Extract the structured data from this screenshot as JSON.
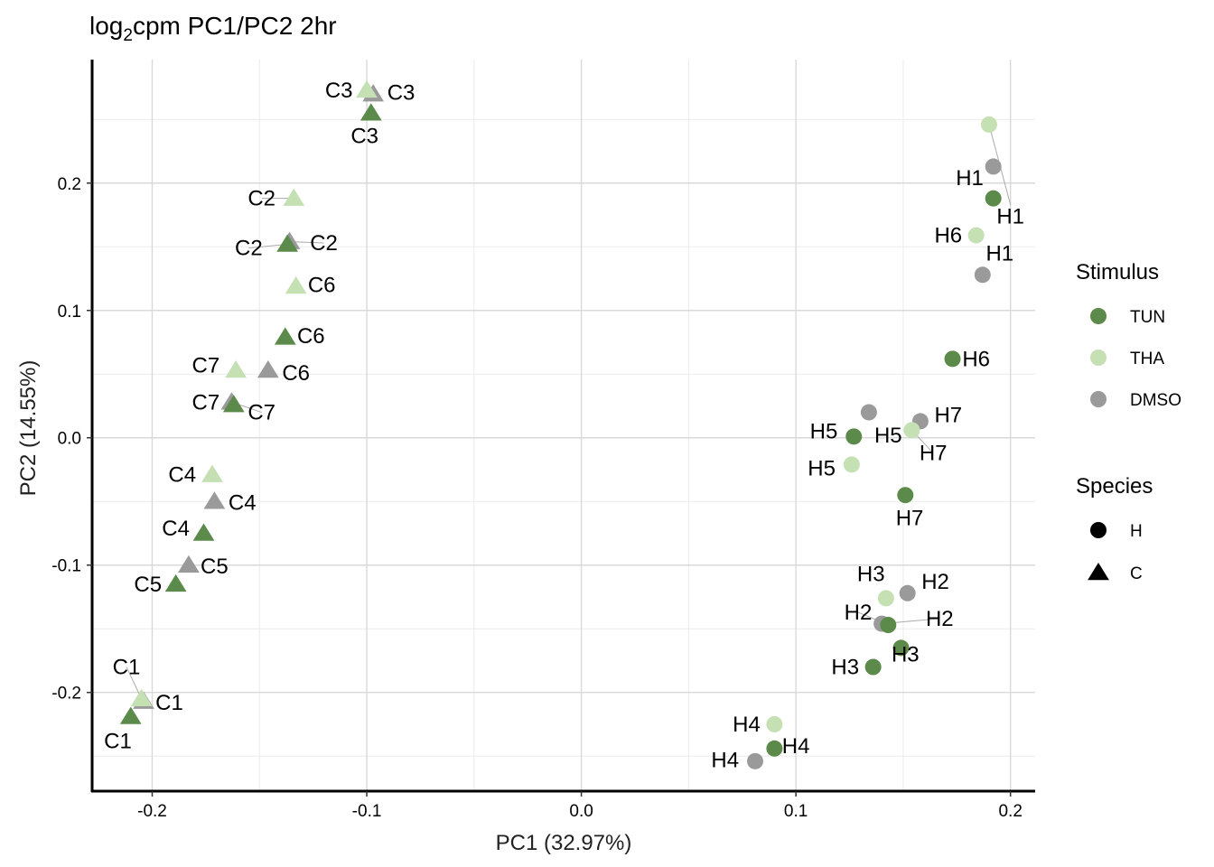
{
  "chart_data": {
    "type": "scatter",
    "title": {
      "prefix": "log",
      "sub": "2",
      "suffix": "cpm PC1/PC2 2hr"
    },
    "xlabel": "PC1 (32.97%)",
    "ylabel": "PC2 (14.55%)",
    "xlim": [
      -0.228,
      0.2115
    ],
    "ylim": [
      -0.2775,
      0.297
    ],
    "xticks": [
      {
        "v": -0.2,
        "label": "-0.2"
      },
      {
        "v": -0.1,
        "label": "-0.1"
      },
      {
        "v": 0.0,
        "label": "0.0"
      },
      {
        "v": 0.1,
        "label": "0.1"
      },
      {
        "v": 0.2,
        "label": "0.2"
      }
    ],
    "yticks": [
      {
        "v": -0.2,
        "label": "-0.2"
      },
      {
        "v": -0.1,
        "label": "-0.1"
      },
      {
        "v": 0.0,
        "label": "0.0"
      },
      {
        "v": 0.1,
        "label": "0.1"
      },
      {
        "v": 0.2,
        "label": "0.2"
      }
    ],
    "grid": true,
    "legend_position": "right",
    "colors": {
      "TUN": "#5b8a4a",
      "THA": "#c5e0b3",
      "DMSO": "#9a9a9a"
    },
    "legend": {
      "stimulus_title": "Stimulus",
      "stimulus": [
        "TUN",
        "THA",
        "DMSO"
      ],
      "species_title": "Species",
      "species": [
        {
          "name": "H",
          "shape": "circle"
        },
        {
          "name": "C",
          "shape": "triangle"
        }
      ]
    },
    "points": [
      {
        "label": "C3",
        "x": -0.1,
        "y": 0.273,
        "stimulus": "THA",
        "species": "C",
        "lx": -0.113,
        "ly": 0.273
      },
      {
        "label": "C3",
        "x": -0.097,
        "y": 0.27,
        "stimulus": "DMSO",
        "species": "C",
        "lx": -0.084,
        "ly": 0.271
      },
      {
        "label": "C3",
        "x": -0.098,
        "y": 0.255,
        "stimulus": "TUN",
        "species": "C",
        "lx": -0.101,
        "ly": 0.237
      },
      {
        "label": "C2",
        "x": -0.134,
        "y": 0.188,
        "stimulus": "THA",
        "species": "C",
        "lx": -0.149,
        "ly": 0.188
      },
      {
        "label": "C2",
        "x": -0.137,
        "y": 0.152,
        "stimulus": "TUN",
        "species": "C",
        "lx": -0.155,
        "ly": 0.149
      },
      {
        "label": "C2",
        "x": -0.136,
        "y": 0.154,
        "stimulus": "DMSO",
        "species": "C",
        "lx": -0.12,
        "ly": 0.153
      },
      {
        "label": "C6",
        "x": -0.133,
        "y": 0.119,
        "stimulus": "THA",
        "species": "C",
        "lx": -0.121,
        "ly": 0.12
      },
      {
        "label": "C6",
        "x": -0.138,
        "y": 0.079,
        "stimulus": "TUN",
        "species": "C",
        "lx": -0.126,
        "ly": 0.08
      },
      {
        "label": "C7",
        "x": -0.161,
        "y": 0.053,
        "stimulus": "THA",
        "species": "C",
        "lx": -0.175,
        "ly": 0.057
      },
      {
        "label": "C6",
        "x": -0.146,
        "y": 0.053,
        "stimulus": "DMSO",
        "species": "C",
        "lx": -0.133,
        "ly": 0.051
      },
      {
        "label": "C7",
        "x": -0.162,
        "y": 0.026,
        "stimulus": "TUN",
        "species": "C",
        "lx": -0.175,
        "ly": 0.028
      },
      {
        "label": "C7",
        "x": -0.163,
        "y": 0.028,
        "stimulus": "DMSO",
        "species": "C",
        "lx": -0.149,
        "ly": 0.02
      },
      {
        "label": "C4",
        "x": -0.172,
        "y": -0.029,
        "stimulus": "THA",
        "species": "C",
        "lx": -0.186,
        "ly": -0.029
      },
      {
        "label": "C4",
        "x": -0.171,
        "y": -0.05,
        "stimulus": "DMSO",
        "species": "C",
        "lx": -0.158,
        "ly": -0.051
      },
      {
        "label": "C4",
        "x": -0.176,
        "y": -0.075,
        "stimulus": "TUN",
        "species": "C",
        "lx": -0.189,
        "ly": -0.071
      },
      {
        "label": "C5",
        "x": -0.183,
        "y": -0.1,
        "stimulus": "DMSO",
        "species": "C",
        "lx": -0.171,
        "ly": -0.101
      },
      {
        "label": "C5",
        "x": -0.189,
        "y": -0.115,
        "stimulus": "TUN",
        "species": "C",
        "lx": -0.202,
        "ly": -0.115
      },
      {
        "label": "C1",
        "x": -0.205,
        "y": -0.205,
        "stimulus": "THA",
        "species": "C",
        "lx": -0.212,
        "ly": -0.18
      },
      {
        "label": "C1",
        "x": -0.204,
        "y": -0.207,
        "stimulus": "DMSO",
        "species": "C",
        "lx": -0.192,
        "ly": -0.208
      },
      {
        "label": "C1",
        "x": -0.21,
        "y": -0.219,
        "stimulus": "TUN",
        "species": "C",
        "lx": -0.216,
        "ly": -0.238
      },
      {
        "label": "",
        "x": 0.19,
        "y": 0.246,
        "stimulus": "THA",
        "species": "H"
      },
      {
        "label": "H1",
        "x": 0.192,
        "y": 0.213,
        "stimulus": "DMSO",
        "species": "H",
        "lx": 0.181,
        "ly": 0.204
      },
      {
        "label": "H1",
        "x": 0.192,
        "y": 0.188,
        "stimulus": "TUN",
        "species": "H",
        "lx": 0.2,
        "ly": 0.174
      },
      {
        "label": "H6",
        "x": 0.184,
        "y": 0.159,
        "stimulus": "THA",
        "species": "H",
        "lx": 0.171,
        "ly": 0.159
      },
      {
        "label": "H1",
        "x": 0.187,
        "y": 0.128,
        "stimulus": "DMSO",
        "species": "H",
        "lx": 0.195,
        "ly": 0.145
      },
      {
        "label": "H6",
        "x": 0.173,
        "y": 0.062,
        "stimulus": "TUN",
        "species": "H",
        "lx": 0.184,
        "ly": 0.062
      },
      {
        "label": "H7",
        "x": 0.158,
        "y": 0.013,
        "stimulus": "DMSO",
        "species": "H",
        "lx": 0.171,
        "ly": 0.018
      },
      {
        "label": "H5",
        "x": 0.134,
        "y": 0.02,
        "stimulus": "DMSO",
        "species": "H",
        "lx": 0.143,
        "ly": 0.002
      },
      {
        "label": "H7",
        "x": 0.154,
        "y": 0.006,
        "stimulus": "THA",
        "species": "H",
        "lx": 0.164,
        "ly": -0.012
      },
      {
        "label": "H5",
        "x": 0.127,
        "y": 0.001,
        "stimulus": "TUN",
        "species": "H",
        "lx": 0.113,
        "ly": 0.005
      },
      {
        "label": "H5",
        "x": 0.126,
        "y": -0.021,
        "stimulus": "THA",
        "species": "H",
        "lx": 0.112,
        "ly": -0.024
      },
      {
        "label": "H7",
        "x": 0.151,
        "y": -0.045,
        "stimulus": "TUN",
        "species": "H",
        "lx": 0.153,
        "ly": -0.063
      },
      {
        "label": "H3",
        "x": 0.142,
        "y": -0.126,
        "stimulus": "THA",
        "species": "H",
        "lx": 0.135,
        "ly": -0.107
      },
      {
        "label": "H2",
        "x": 0.152,
        "y": -0.122,
        "stimulus": "DMSO",
        "species": "H",
        "lx": 0.165,
        "ly": -0.113
      },
      {
        "label": "H2",
        "x": 0.143,
        "y": -0.147,
        "stimulus": "TUN",
        "species": "H",
        "lx": 0.129,
        "ly": -0.137
      },
      {
        "label": "H2",
        "x": 0.14,
        "y": -0.146,
        "stimulus": "DMSO",
        "species": "H",
        "lx": 0.167,
        "ly": -0.142
      },
      {
        "label": "H3",
        "x": 0.136,
        "y": -0.18,
        "stimulus": "TUN",
        "species": "H",
        "lx": 0.123,
        "ly": -0.18
      },
      {
        "label": "H3",
        "x": 0.149,
        "y": -0.165,
        "stimulus": "TUN",
        "species": "H",
        "lx": 0.151,
        "ly": -0.17
      },
      {
        "label": "H4",
        "x": 0.09,
        "y": -0.225,
        "stimulus": "THA",
        "species": "H",
        "lx": 0.077,
        "ly": -0.225
      },
      {
        "label": "H4",
        "x": 0.09,
        "y": -0.244,
        "stimulus": "TUN",
        "species": "H",
        "lx": 0.1,
        "ly": -0.242
      },
      {
        "label": "H4",
        "x": 0.081,
        "y": -0.254,
        "stimulus": "DMSO",
        "species": "H",
        "lx": 0.067,
        "ly": -0.253
      }
    ]
  }
}
